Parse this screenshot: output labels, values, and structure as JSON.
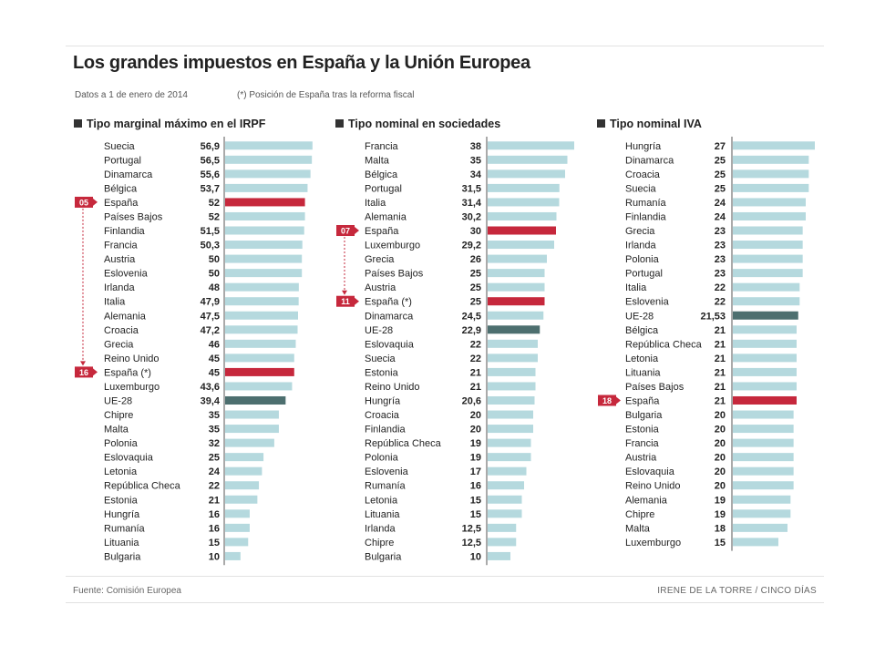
{
  "title": "Los grandes impuestos en España y la Unión Europea",
  "date_note": "Datos a 1 de enero de 2014",
  "reform_note": "(*) Posición de España tras la reforma fiscal",
  "source": "Fuente: Comisión Europea",
  "credit": "IRENE DE LA TORRE / CINCO DÍAS",
  "colors": {
    "bar": "#b5d9de",
    "highlight": "#c6283c",
    "eu": "#4d6f6f",
    "axis": "#555555"
  },
  "chart_data": [
    {
      "type": "bar",
      "orientation": "horizontal",
      "title": "Tipo marginal máximo en el IRPF",
      "categories": [
        "Suecia",
        "Portugal",
        "Dinamarca",
        "Bélgica",
        "España",
        "Países Bajos",
        "Finlandia",
        "Francia",
        "Austria",
        "Eslovenia",
        "Irlanda",
        "Italia",
        "Alemania",
        "Croacia",
        "Grecia",
        "Reino Unido",
        "España (*)",
        "Luxemburgo",
        "UE-28",
        "Chipre",
        "Malta",
        "Polonia",
        "Eslovaquia",
        "Letonia",
        "República Checa",
        "Estonia",
        "Hungría",
        "Rumanía",
        "Lituania",
        "Bulgaria"
      ],
      "value_labels": [
        "56,9",
        "56,5",
        "55,6",
        "53,7",
        "52",
        "52",
        "51,5",
        "50,3",
        "50",
        "50",
        "48",
        "47,9",
        "47,5",
        "47,2",
        "46",
        "45",
        "45",
        "43,6",
        "39,4",
        "35",
        "35",
        "32",
        "25",
        "24",
        "22",
        "21",
        "16",
        "16",
        "15",
        "10"
      ],
      "values": [
        56.9,
        56.5,
        55.6,
        53.7,
        52,
        52,
        51.5,
        50.3,
        50,
        50,
        48,
        47.9,
        47.5,
        47.2,
        46,
        45,
        45,
        43.6,
        39.4,
        35,
        35,
        32,
        25,
        24,
        22,
        21,
        16,
        16,
        15,
        10
      ],
      "highlight": [
        4,
        16
      ],
      "eu_index": 18,
      "rank_badges": [
        {
          "index": 4,
          "label": "05"
        },
        {
          "index": 16,
          "label": "16"
        }
      ],
      "xlim": [
        0,
        57
      ]
    },
    {
      "type": "bar",
      "orientation": "horizontal",
      "title": "Tipo nominal en sociedades",
      "categories": [
        "Francia",
        "Malta",
        "Bélgica",
        "Portugal",
        "Italia",
        "Alemania",
        "España",
        "Luxemburgo",
        "Grecia",
        "Países Bajos",
        "Austria",
        "España (*)",
        "Dinamarca",
        "UE-28",
        "Eslovaquia",
        "Suecia",
        "Estonia",
        "Reino Unido",
        "Hungría",
        "Croacia",
        "Finlandia",
        "República Checa",
        "Polonia",
        "Eslovenia",
        "Rumanía",
        "Letonia",
        "Lituania",
        "Irlanda",
        "Chipre",
        "Bulgaria"
      ],
      "value_labels": [
        "38",
        "35",
        "34",
        "31,5",
        "31,4",
        "30,2",
        "30",
        "29,2",
        "26",
        "25",
        "25",
        "25",
        "24,5",
        "22,9",
        "22",
        "22",
        "21",
        "21",
        "20,6",
        "20",
        "20",
        "19",
        "19",
        "17",
        "16",
        "15",
        "15",
        "12,5",
        "12,5",
        "10"
      ],
      "values": [
        38,
        35,
        34,
        31.5,
        31.4,
        30.2,
        30,
        29.2,
        26,
        25,
        25,
        25,
        24.5,
        22.9,
        22,
        22,
        21,
        21,
        20.6,
        20,
        20,
        19,
        19,
        17,
        16,
        15,
        15,
        12.5,
        12.5,
        10
      ],
      "highlight": [
        6,
        11
      ],
      "eu_index": 13,
      "rank_badges": [
        {
          "index": 6,
          "label": "07"
        },
        {
          "index": 11,
          "label": "11"
        }
      ],
      "xlim": [
        0,
        38
      ]
    },
    {
      "type": "bar",
      "orientation": "horizontal",
      "title": "Tipo nominal IVA",
      "categories": [
        "Hungría",
        "Dinamarca",
        "Croacia",
        "Suecia",
        "Rumanía",
        "Finlandia",
        "Grecia",
        "Irlanda",
        "Polonia",
        "Portugal",
        "Italia",
        "Eslovenia",
        "UE-28",
        "Bélgica",
        "República Checa",
        "Letonia",
        "Lituania",
        "Países Bajos",
        "España",
        "Bulgaria",
        "Estonia",
        "Francia",
        "Austria",
        "Eslovaquia",
        "Reino Unido",
        "Alemania",
        "Chipre",
        "Malta",
        "Luxemburgo"
      ],
      "value_labels": [
        "27",
        "25",
        "25",
        "25",
        "24",
        "24",
        "23",
        "23",
        "23",
        "23",
        "22",
        "22",
        "21,53",
        "21",
        "21",
        "21",
        "21",
        "21",
        "21",
        "20",
        "20",
        "20",
        "20",
        "20",
        "20",
        "19",
        "19",
        "18",
        "15"
      ],
      "values": [
        27,
        25,
        25,
        25,
        24,
        24,
        23,
        23,
        23,
        23,
        22,
        22,
        21.53,
        21,
        21,
        21,
        21,
        21,
        21,
        20,
        20,
        20,
        20,
        20,
        20,
        19,
        19,
        18,
        15
      ],
      "highlight": [
        18
      ],
      "eu_index": 12,
      "rank_badges": [
        {
          "index": 18,
          "label": "18"
        }
      ],
      "xlim": [
        0,
        27
      ]
    }
  ]
}
